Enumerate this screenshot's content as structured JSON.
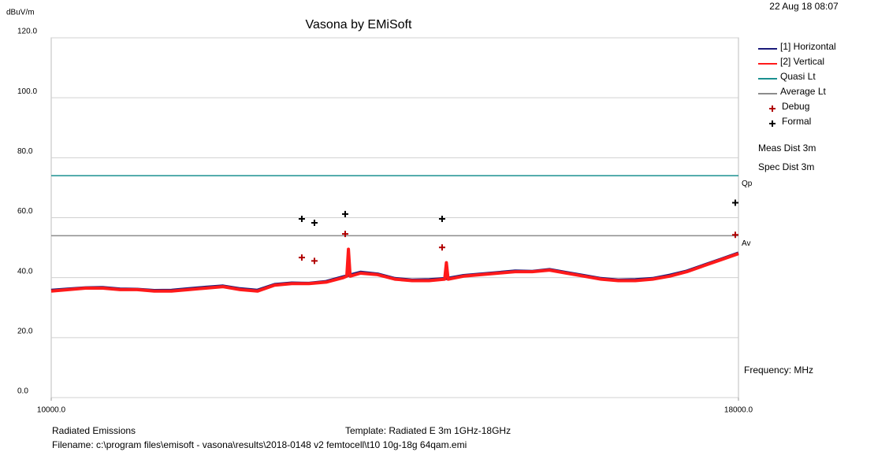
{
  "chart_data": {
    "type": "line",
    "title": "Vasona by EMiSoft",
    "ylabel": "dBuV/m",
    "date": "22 Aug 18 08:07",
    "xlabel": "Frequency: MHz",
    "annotations": [
      "Meas Dist 3m",
      "Spec Dist 3m"
    ],
    "limit_tags": [
      "Qp",
      "Av"
    ],
    "footer": [
      "Radiated Emissions",
      "Template: Radiated E 3m 1GHz-18GHz",
      "Filename: c:\\program files\\emisoft - vasona\\results\\2018-0148 v2  femtocell\\t10 10g-18g 64qam.emi"
    ],
    "xlim": [
      10000,
      18000
    ],
    "xticks": [
      {
        "value": 10000,
        "label": "10000.0"
      },
      {
        "value": 18000,
        "label": "18000.0"
      }
    ],
    "ylim": [
      0,
      120
    ],
    "yticks": [
      {
        "value": 0,
        "label": "0.0"
      },
      {
        "value": 20,
        "label": "20.0"
      },
      {
        "value": 40,
        "label": "40.0"
      },
      {
        "value": 60,
        "label": "60.0"
      },
      {
        "value": 80,
        "label": "80.0"
      },
      {
        "value": 100,
        "label": "100.0"
      },
      {
        "value": 120,
        "label": "120.0"
      }
    ],
    "grid": true,
    "series": [
      {
        "name": "[1] Horizontal",
        "style": "line",
        "color": "#1a1a7a",
        "x": [
          10000,
          10200,
          10400,
          10600,
          10800,
          11000,
          11200,
          11400,
          11600,
          11800,
          12000,
          12200,
          12400,
          12600,
          12800,
          13000,
          13200,
          13400,
          13600,
          13800,
          14000,
          14200,
          14400,
          14600,
          14800,
          15000,
          15200,
          15400,
          15600,
          15800,
          16000,
          16200,
          16400,
          16600,
          16800,
          17000,
          17200,
          17400,
          17600,
          17800,
          18000
        ],
        "values": [
          35.8,
          36.2,
          36.6,
          36.7,
          36.2,
          36.1,
          35.7,
          35.8,
          36.3,
          36.8,
          37.2,
          36.3,
          35.8,
          37.7,
          38.2,
          38.1,
          38.7,
          40.3,
          41.8,
          41.2,
          39.7,
          39.2,
          39.3,
          39.7,
          40.7,
          41.2,
          41.7,
          42.2,
          42.1,
          42.7,
          41.7,
          40.7,
          39.7,
          39.2,
          39.3,
          39.7,
          40.8,
          42.2,
          44.2,
          46.2,
          48.2
        ]
      },
      {
        "name": "[2] Vertical",
        "style": "line",
        "color": "#ff1a1a",
        "x": [
          10000,
          10200,
          10400,
          10600,
          10800,
          11000,
          11200,
          11400,
          11600,
          11800,
          12000,
          12200,
          12400,
          12600,
          12800,
          13000,
          13200,
          13400,
          13440,
          13460,
          13480,
          13600,
          13800,
          14000,
          14200,
          14400,
          14580,
          14600,
          14620,
          14800,
          15000,
          15200,
          15400,
          15600,
          15800,
          16000,
          16200,
          16400,
          16600,
          16800,
          17000,
          17200,
          17400,
          17600,
          17800,
          18000
        ],
        "values": [
          35.5,
          36,
          36.5,
          36.5,
          36,
          36,
          35.5,
          35.5,
          36,
          36.5,
          37,
          36,
          35.5,
          37.5,
          38,
          38,
          38.5,
          40,
          40.5,
          49.5,
          40.5,
          41.5,
          41,
          39.5,
          39,
          39,
          39.5,
          45,
          39.5,
          40.5,
          41,
          41.5,
          42,
          42,
          42.5,
          41.5,
          40.5,
          39.5,
          39,
          39,
          39.5,
          40.5,
          42,
          44,
          46,
          48
        ]
      },
      {
        "name": "Quasi Lt",
        "style": "hline",
        "color": "#1a9090",
        "value": 74
      },
      {
        "name": "Average Lt",
        "style": "hline",
        "color": "#8c8c8c",
        "value": 54
      },
      {
        "name": "Debug",
        "style": "marker",
        "color": "#b00000",
        "x": [
          12917,
          13064,
          13422,
          14550,
          17963
        ],
        "values": [
          46.7,
          45.6,
          54.6,
          50.1,
          54.3
        ]
      },
      {
        "name": "Formal",
        "style": "marker",
        "color": "#000000",
        "x": [
          12917,
          13064,
          13422,
          14550,
          17963
        ],
        "values": [
          59.6,
          58.3,
          61.2,
          59.6,
          65
        ]
      }
    ]
  }
}
